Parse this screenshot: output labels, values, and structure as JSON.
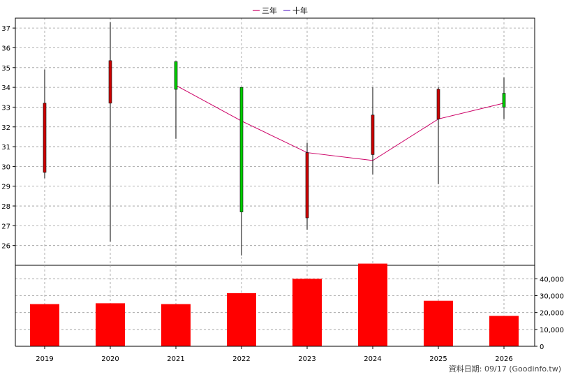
{
  "legend": [
    {
      "label": "三年",
      "color": "#cc0066"
    },
    {
      "label": "十年",
      "color": "#6633cc"
    }
  ],
  "footer": "資料日期: 09/17  (Goodinfo.tw)",
  "chart_data": [
    {
      "type": "candlestick",
      "categories": [
        "2019",
        "2020",
        "2021",
        "2022",
        "2023",
        "2024",
        "2025",
        "2026"
      ],
      "ylim": [
        25,
        37.5
      ],
      "yticks": [
        26,
        27,
        28,
        29,
        30,
        31,
        32,
        33,
        34,
        35,
        36,
        37
      ],
      "grid": true,
      "candles": [
        {
          "x": "2019",
          "open": 29.7,
          "close": 33.2,
          "high": 34.9,
          "low": 29.4,
          "color": "#cc0000"
        },
        {
          "x": "2020",
          "open": 33.2,
          "close": 35.35,
          "high": 37.3,
          "low": 26.2,
          "color": "#cc0000"
        },
        {
          "x": "2021",
          "open": 35.3,
          "close": 33.9,
          "high": 35.3,
          "low": 31.4,
          "color": "#00cc00"
        },
        {
          "x": "2022",
          "open": 34.0,
          "close": 27.7,
          "high": 34.0,
          "low": 25.5,
          "color": "#00cc00"
        },
        {
          "x": "2023",
          "open": 27.4,
          "close": 30.7,
          "high": 31.2,
          "low": 26.8,
          "color": "#cc0000"
        },
        {
          "x": "2024",
          "open": 30.6,
          "close": 32.6,
          "high": 34.0,
          "low": 29.6,
          "color": "#cc0000"
        },
        {
          "x": "2025",
          "open": 32.4,
          "close": 33.9,
          "high": 34.0,
          "low": 29.1,
          "color": "#cc0000"
        },
        {
          "x": "2026",
          "open": 33.7,
          "close": 33.0,
          "high": 34.5,
          "low": 32.4,
          "color": "#00cc00"
        }
      ],
      "series": [
        {
          "name": "三年",
          "color": "#cc0066",
          "values": [
            null,
            null,
            34.1,
            32.3,
            30.7,
            30.3,
            32.4,
            33.2
          ]
        }
      ]
    },
    {
      "type": "bar",
      "categories": [
        "2019",
        "2020",
        "2021",
        "2022",
        "2023",
        "2024",
        "2025",
        "2026"
      ],
      "values": [
        25000,
        25500,
        25000,
        31500,
        40000,
        49000,
        27000,
        18000
      ],
      "ylim": [
        0,
        48000
      ],
      "yticks": [
        "0",
        "10,000",
        "20,000",
        "30,000",
        "40,000"
      ],
      "ytick_values": [
        0,
        10000,
        20000,
        30000,
        40000
      ],
      "color": "#ff0000",
      "grid": true
    }
  ]
}
